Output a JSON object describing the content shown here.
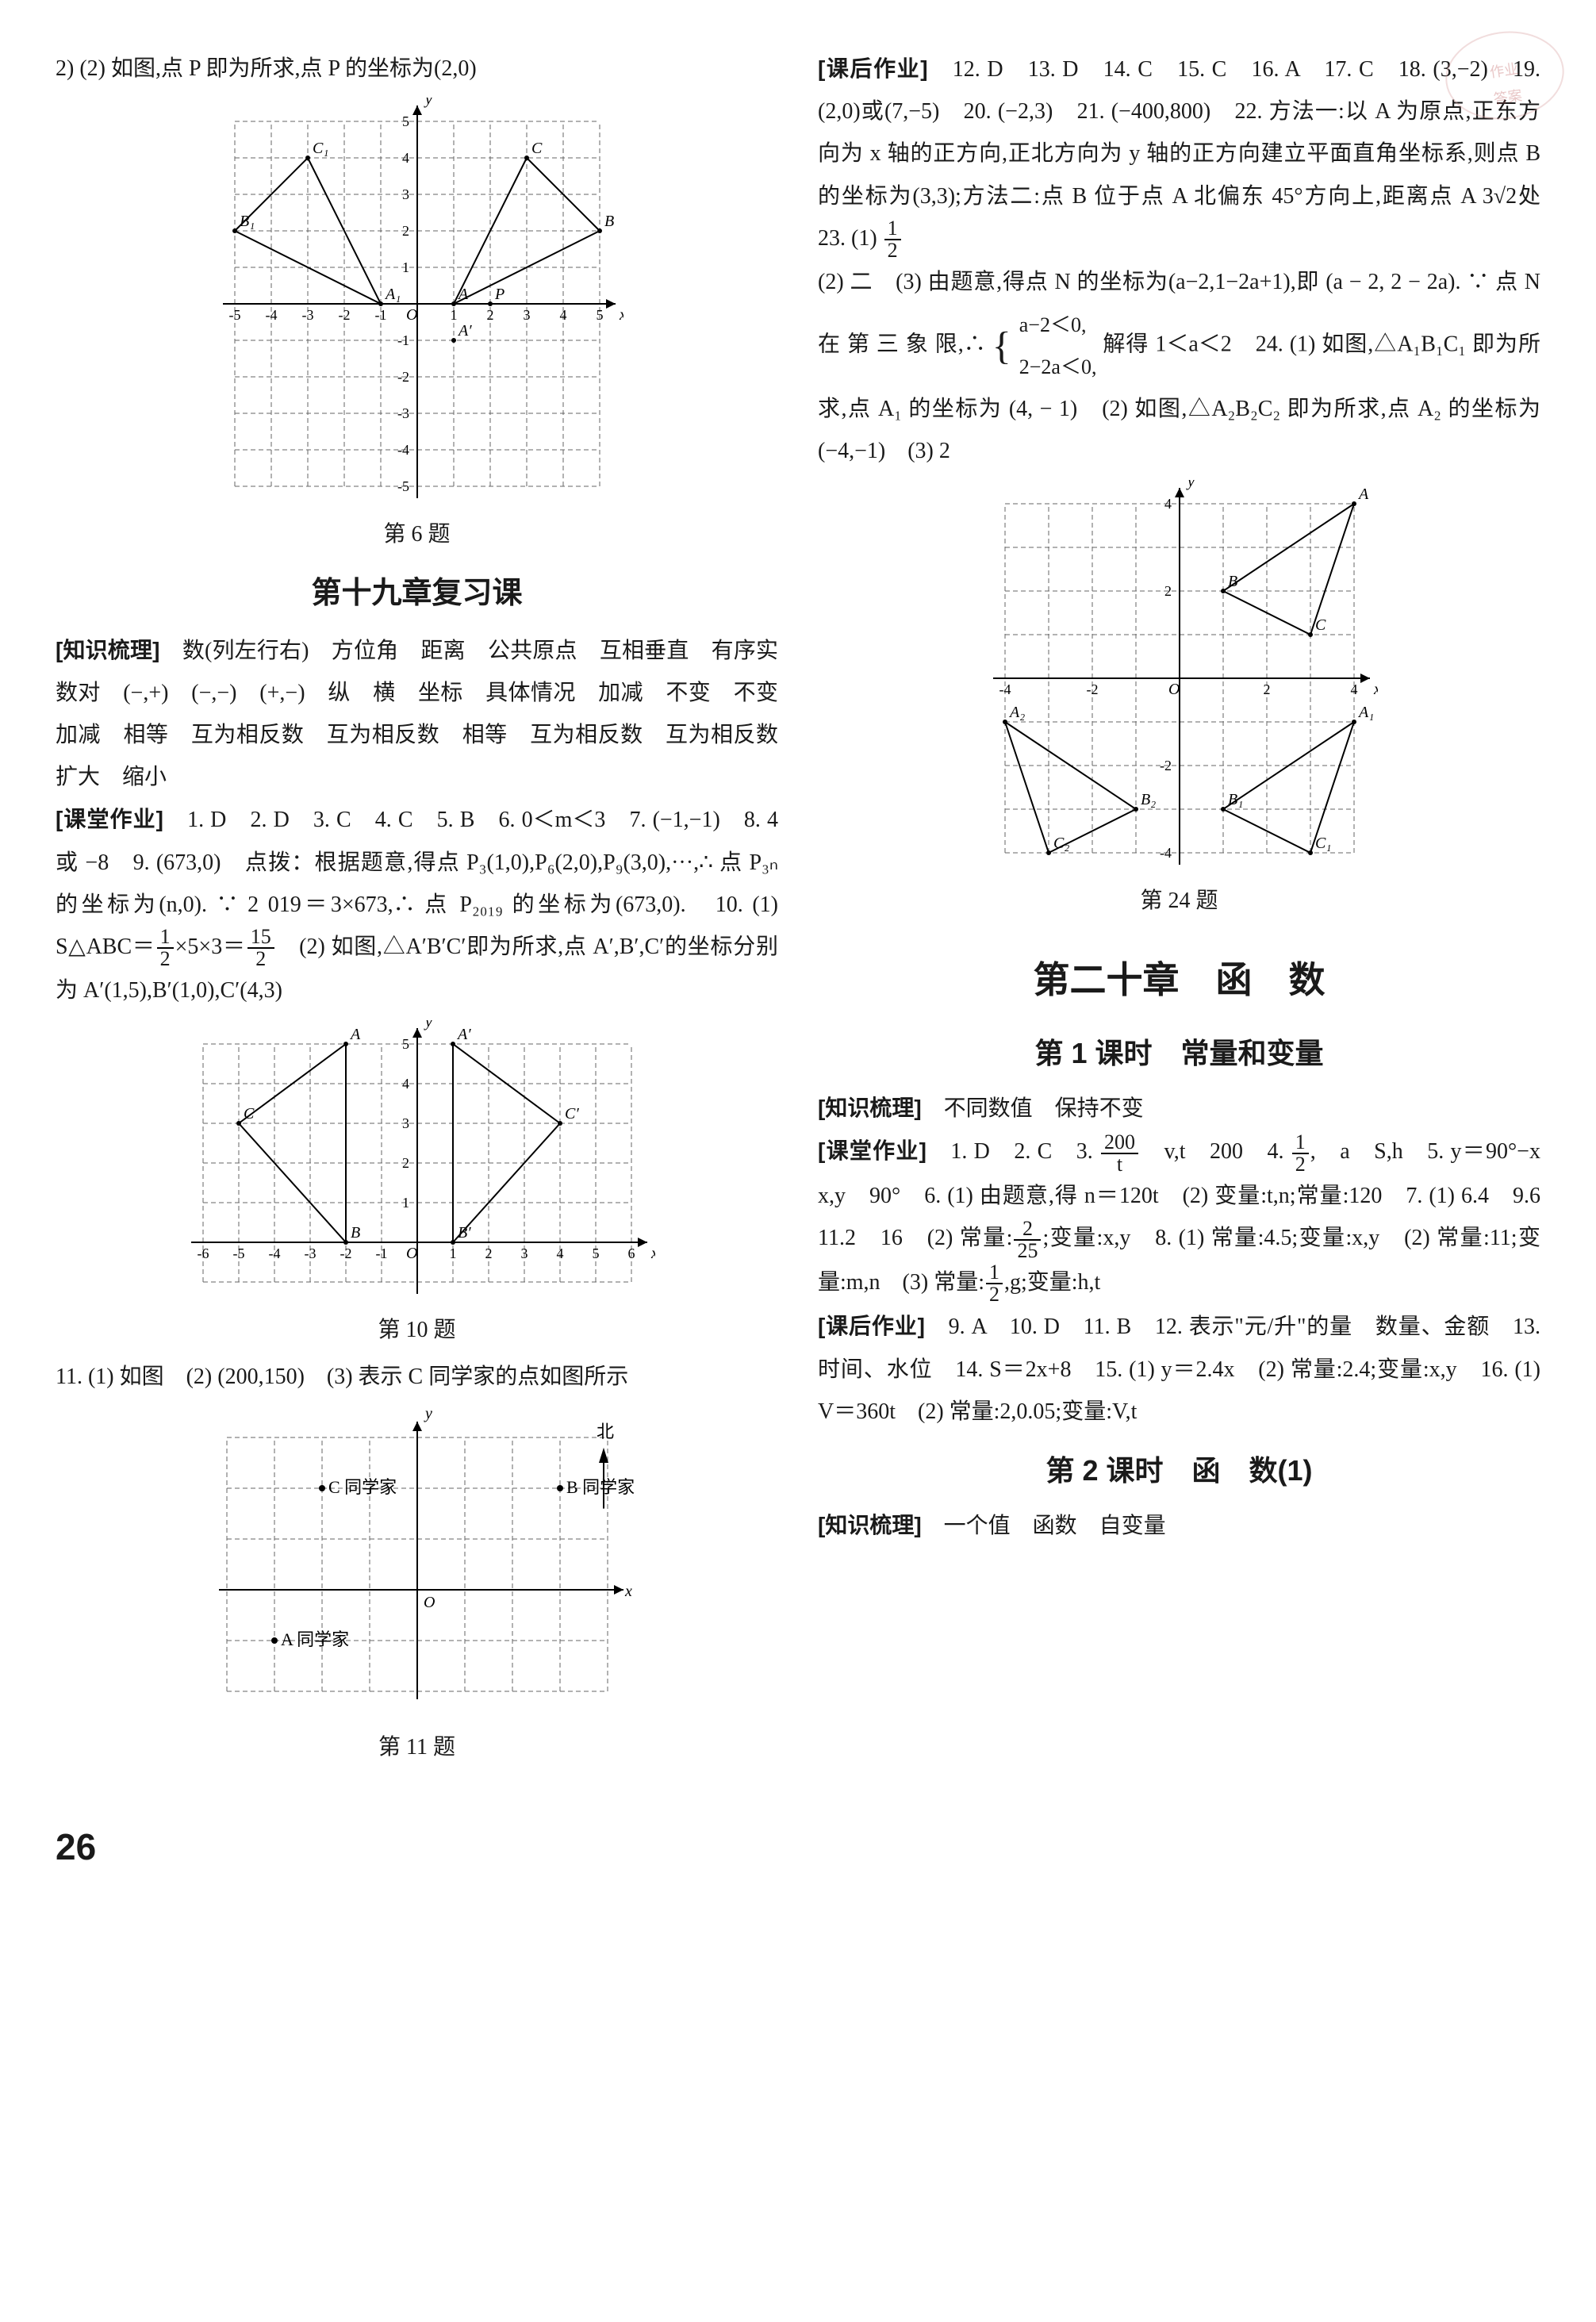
{
  "stamp": {
    "line1": "作业",
    "line2": "答案"
  },
  "pagenum": "26",
  "left": {
    "top_line": "2) (2) 如图,点 P 即为所求,点 P 的坐标为(2,0)",
    "fig6": {
      "caption": "第 6 题",
      "grid_color": "#666666",
      "axis_color": "#000000",
      "bg": "#ffffff",
      "xlim": [
        -5,
        5
      ],
      "ylim": [
        -5,
        5
      ],
      "xticks": [
        -5,
        -4,
        -3,
        -2,
        -1,
        1,
        2,
        3,
        4,
        5
      ],
      "yticks": [
        -5,
        -4,
        -3,
        -2,
        -1,
        1,
        2,
        3,
        4,
        5
      ],
      "x_tick_labels": [
        "-5",
        "-4",
        "-3",
        "-2",
        "-1",
        "1",
        "2",
        "3",
        "4",
        "5"
      ],
      "y_tick_labels": [
        "",
        "",
        "",
        "",
        "-1",
        "1",
        "2",
        "3",
        "4",
        "5"
      ],
      "y_tick_labels_neg": [
        "-1",
        "-2",
        "-3",
        "-4",
        "-5"
      ],
      "labels": {
        "x": "x",
        "y": "y",
        "O": "O"
      },
      "points": {
        "A": {
          "x": 1,
          "y": 0,
          "label": "A"
        },
        "B": {
          "x": 5,
          "y": 2,
          "label": "B"
        },
        "C": {
          "x": 3,
          "y": 4,
          "label": "C"
        },
        "A1": {
          "x": -1,
          "y": 0,
          "label": "A₁"
        },
        "B1": {
          "x": -5,
          "y": 2,
          "label": "B₁"
        },
        "C1": {
          "x": -3,
          "y": 4,
          "label": "C₁"
        },
        "P": {
          "x": 2,
          "y": 0,
          "label": "P"
        },
        "Aprime": {
          "x": 1,
          "y": -1,
          "label": "A′"
        }
      },
      "triangles": [
        [
          "A",
          "B",
          "C"
        ],
        [
          "A1",
          "B1",
          "C1"
        ]
      ],
      "line_width": 2
    },
    "ch19_title": "第十九章复习课",
    "zsml_label": "[知识梳理]",
    "zsml_text": "数(列左行右)　方位角　距离　公共原点　互相垂直　有序实数对　(−,+)　(−,−)　(+,−)　纵　横　坐标　具体情况　加减　不变　不变　加减　相等　互为相反数　互为相反数　相等　互为相反数　互为相反数　扩大　缩小",
    "ktzy_label": "[课堂作业]",
    "ktzy_text_1": "1. D　2. D　3. C　4. C　5. B　6. 0＜m＜3　7. (−1,−1)　8. 4 或 −8　9. (673,0)　点拨：根据题意,得点 P₃(1,0),P₆(2,0),P₉(3,0),···,∴ 点 P₃ₙ 的坐标为(n,0). ∵ 2 019＝3×673,∴ 点 P₂₀₁₉ 的坐标为(673,0).　10. (1) S△ABC＝",
    "frac_10_num": "1",
    "frac_10_den": "2",
    "ktzy_text_1b": "×5×3＝",
    "frac_10b_num": "15",
    "frac_10b_den": "2",
    "ktzy_text_2": "　(2) 如图,△A′B′C′即为所求,点 A′,B′,C′的坐标分别为 A′(1,5),B′(1,0),C′(4,3)",
    "fig10": {
      "caption": "第 10 题",
      "grid_color": "#666666",
      "axis_color": "#000000",
      "xlim": [
        -6,
        6
      ],
      "ylim": [
        -1,
        5
      ],
      "xticks": [
        -6,
        -5,
        -4,
        -3,
        -2,
        -1,
        1,
        2,
        3,
        4,
        5,
        6
      ],
      "yticks": [
        1,
        2,
        3,
        4,
        5
      ],
      "labels": {
        "x": "x",
        "y": "y",
        "O": "O"
      },
      "points": {
        "A": {
          "x": -2,
          "y": 5,
          "label": "A"
        },
        "B": {
          "x": -2,
          "y": 0,
          "label": "B"
        },
        "C": {
          "x": -5,
          "y": 3,
          "label": "C"
        },
        "Ap": {
          "x": 1,
          "y": 5,
          "label": "A′"
        },
        "Bp": {
          "x": 1,
          "y": 0,
          "label": "B′"
        },
        "Cp": {
          "x": 4,
          "y": 3,
          "label": "C′"
        }
      },
      "triangles": [
        [
          "A",
          "B",
          "C"
        ],
        [
          "Ap",
          "Bp",
          "Cp"
        ]
      ],
      "line_width": 2
    },
    "q11_text": "11. (1) 如图　(2) (200,150)　(3) 表示 C 同学家的点如图所示",
    "fig11": {
      "caption": "第 11 题",
      "grid_color": "#666666",
      "axis_color": "#000000",
      "xlim": [
        -4,
        4
      ],
      "ylim": [
        -2,
        3
      ],
      "labels": {
        "x": "x",
        "y": "y",
        "O": "O",
        "north": "北"
      },
      "north_arrow": true,
      "points": {
        "A": {
          "x": -3,
          "y": -1,
          "label": "A 同学家"
        },
        "B": {
          "x": 3,
          "y": 2,
          "label": "B 同学家"
        },
        "C": {
          "x": -2,
          "y": 2,
          "label": "C 同学家"
        }
      }
    }
  },
  "right": {
    "khzy_label": "[课后作业]",
    "khzy_text_1": "12. D　13. D　14. C　15. C　16. A　17. C　18. (3,−2)　19. (2,0)或(7,−5)　20. (−2,3)　21. (−400,800)　22. 方法一:以 A 为原点,正东方向为 x 轴的正方向,正北方向为 y 轴的正方向建立平面直角坐标系,则点 B 的坐标为(3,3);方法二:点 B 位于点 A 北偏东 45°方向上,距离点 A 3",
    "sqrt2": "√2",
    "khzy_text_1b": "处　23. (1) ",
    "frac_23_num": "1",
    "frac_23_den": "2",
    "khzy_text_2": "(2) 二　(3) 由题意,得点 N 的坐标为(a−2,1−2a+1),即 (a − 2, 2 − 2a). ∵ 点 N 在 第 三 象 限,∴ ",
    "brace_top": "a−2＜0,",
    "brace_bot": "2−2a＜0,",
    "khzy_text_3": " 解得 1＜a＜2　24. (1) 如图,△A₁B₁C₁ 即为所求,点 A₁ 的坐标为 (4, − 1)　(2) 如图,△A₂B₂C₂ 即为所求,点 A₂ 的坐标为(−4,−1)　(3) 2",
    "fig24": {
      "caption": "第 24 题",
      "grid_color": "#666666",
      "axis_color": "#000000",
      "xlim": [
        -4,
        4
      ],
      "ylim": [
        -4,
        4
      ],
      "xticks": [
        -4,
        -2,
        2,
        4
      ],
      "yticks": [
        -4,
        -2,
        2,
        4
      ],
      "labels": {
        "x": "x",
        "y": "y",
        "O": "O"
      },
      "points": {
        "A": {
          "x": 4,
          "y": 4,
          "label": "A"
        },
        "B": {
          "x": 1,
          "y": 2,
          "label": "B"
        },
        "C": {
          "x": 3,
          "y": 1,
          "label": "C"
        },
        "A1": {
          "x": 4,
          "y": -1,
          "label": "A₁"
        },
        "B1": {
          "x": 1,
          "y": -3,
          "label": "B₁"
        },
        "C1": {
          "x": 3,
          "y": -4,
          "label": "C₁"
        },
        "A2": {
          "x": -4,
          "y": -1,
          "label": "A₂"
        },
        "B2": {
          "x": -1,
          "y": -3,
          "label": "B₂"
        },
        "C2": {
          "x": -3,
          "y": -4,
          "label": "C₂"
        }
      },
      "triangles": [
        [
          "A",
          "B",
          "C"
        ],
        [
          "A1",
          "B1",
          "C1"
        ],
        [
          "A2",
          "B2",
          "C2"
        ]
      ],
      "line_width": 2
    },
    "ch20_title": "第二十章　函　数",
    "lesson1_title": "第 1 课时　常量和变量",
    "l1_zsml_label": "[知识梳理]",
    "l1_zsml_text": "不同数值　保持不变",
    "l1_ktzy_label": "[课堂作业]",
    "l1_ktzy_text_a": "1. D　2. C　3. ",
    "l1_frac3_num": "200",
    "l1_frac3_den": "t",
    "l1_ktzy_text_b": "　v,t　200　4. ",
    "l1_frac4_num": "1",
    "l1_frac4_den": "2",
    "l1_ktzy_text_c": ",　a　S,h　5. y＝90°−x　x,y　90°　6. (1) 由题意,得 n＝120t　(2) 变量:t,n;常量:120　7. (1) 6.4　9.6　11.2　16　(2) 常量:",
    "l1_frac7_num": "2",
    "l1_frac7_den": "25",
    "l1_ktzy_text_d": ";变量:x,y　8. (1) 常量:4.5;变量:x,y　(2) 常量:11;变量:m,n　(3) 常量:",
    "l1_frac8_num": "1",
    "l1_frac8_den": "2",
    "l1_ktzy_text_e": ",g;变量:h,t",
    "l1_khzy_label": "[课后作业]",
    "l1_khzy_text": "9. A　10. D　11. B　12. 表示\"元/升\"的量　数量、金额　13. 时间、水位　14. S＝2x+8　15. (1) y＝2.4x　(2) 常量:2.4;变量:x,y　16. (1) V＝360t　(2) 常量:2,0.05;变量:V,t",
    "lesson2_title": "第 2 课时　函　数(1)",
    "l2_zsml_label": "[知识梳理]",
    "l2_zsml_text": "一个值　函数　自变量"
  },
  "svg_style": {
    "font_family": "serif",
    "font_size_axis": 18,
    "font_size_label": 20,
    "dash": "6,4"
  }
}
